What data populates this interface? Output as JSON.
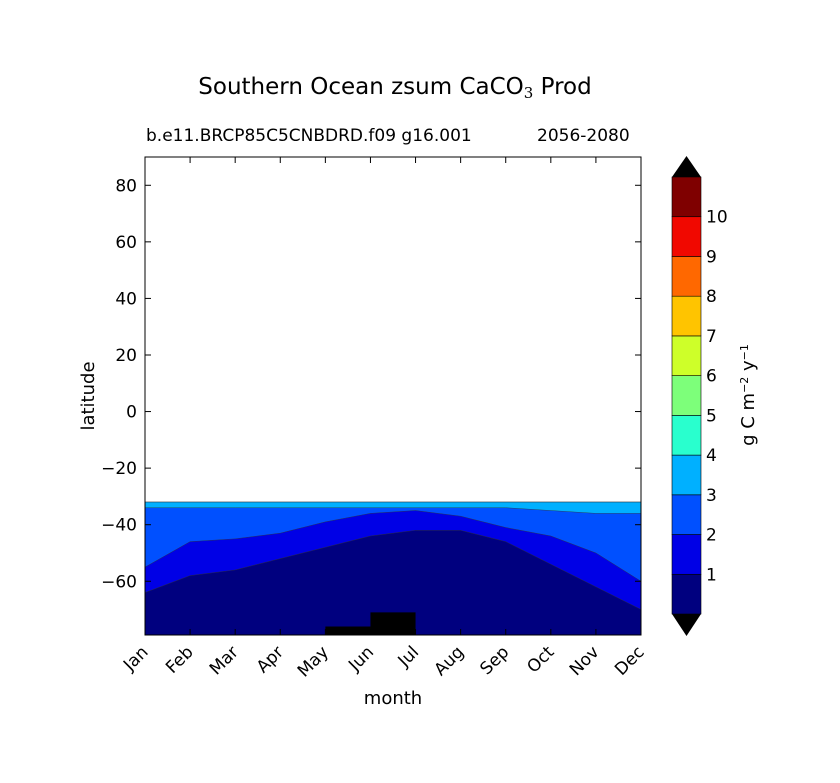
{
  "chart_data": {
    "type": "contour",
    "title": "Southern Ocean zsum CaCO",
    "title_sub": "3",
    "title_suffix": " Prod",
    "subtitle_left": "b.e11.BRCP85C5CNBDRD.f09 g16.001",
    "subtitle_right": "2056-2080",
    "xlabel": "month",
    "ylabel": "latitude",
    "x_categories": [
      "Jan",
      "Feb",
      "Mar",
      "Apr",
      "May",
      "Jun",
      "Jul",
      "Aug",
      "Sep",
      "Oct",
      "Nov",
      "Dec"
    ],
    "ylim": [
      -79,
      90
    ],
    "yticks": [
      80,
      60,
      40,
      20,
      0,
      -20,
      -40,
      -60
    ],
    "ytick_labels": [
      "80",
      "60",
      "40",
      "20",
      "0",
      "−20",
      "−40",
      "−60"
    ],
    "data_region_lat": [
      -79,
      -32
    ],
    "colorbar": {
      "label": "g C m",
      "label_exp1": "−2",
      "label_mid": " y",
      "label_exp2": "−1",
      "levels": [
        0,
        1,
        2,
        3,
        4,
        5,
        6,
        7,
        8,
        9,
        10,
        11
      ],
      "tick_labels": [
        "1",
        "2",
        "3",
        "4",
        "5",
        "6",
        "7",
        "8",
        "9",
        "10"
      ],
      "colors": [
        "#00007f",
        "#0000e6",
        "#0050ff",
        "#00b0ff",
        "#29ffce",
        "#7dff7a",
        "#ceff29",
        "#ffc400",
        "#ff6800",
        "#f10800",
        "#7f0000"
      ],
      "extend": "both",
      "under_color": "#000000",
      "over_color": "#000000"
    },
    "bands": [
      {
        "level": 1,
        "lat_boundary": [
          -64,
          -58,
          -56,
          -52,
          -48,
          -44,
          -42,
          -42,
          -46,
          -54,
          -62,
          -70
        ]
      },
      {
        "level": 2,
        "lat_boundary": [
          -55,
          -46,
          -45,
          -43,
          -39,
          -36,
          -35,
          -37,
          -41,
          -44,
          -50,
          -60
        ]
      },
      {
        "level": 3,
        "lat_boundary": [
          -34,
          -34,
          -34,
          -34,
          -34,
          -34,
          -34,
          -34,
          -34,
          -35,
          -36,
          -36
        ]
      }
    ],
    "land_mask": [
      {
        "month_range": [
          4.0,
          5.0
        ],
        "lat_range": [
          -79,
          -76
        ]
      },
      {
        "month_range": [
          5.0,
          6.0
        ],
        "lat_range": [
          -79,
          -71
        ]
      }
    ]
  }
}
